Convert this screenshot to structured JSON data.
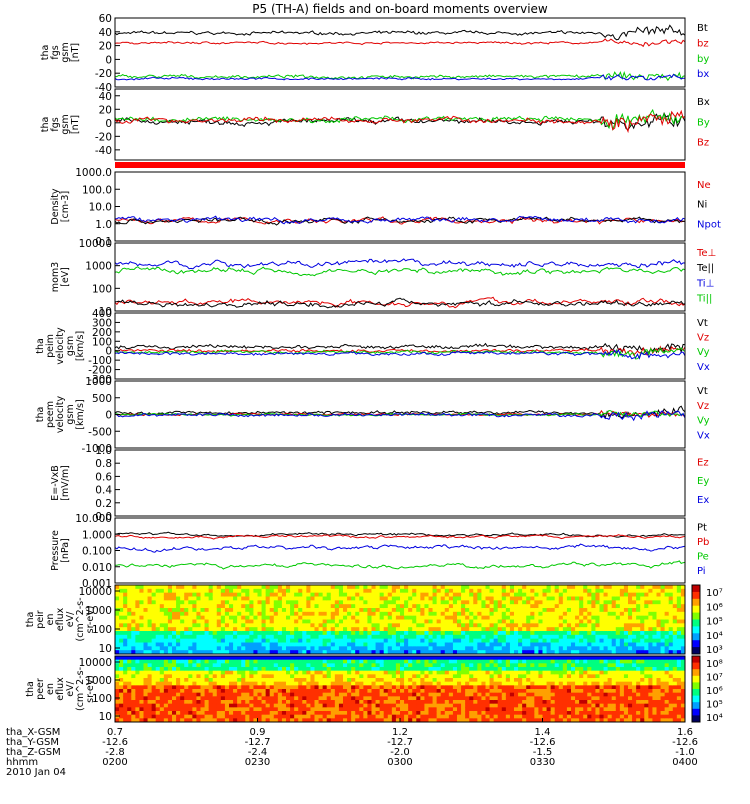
{
  "title": "P5 (TH-A) fields and on-board moments overview",
  "date": "2010 Jan 04",
  "xaxis_rows": [
    {
      "label": "tha_X-GSM",
      "values": [
        "0.7",
        "0.9",
        "1.2",
        "1.4",
        "1.6"
      ]
    },
    {
      "label": "tha_Y-GSM",
      "values": [
        "-12.6",
        "-12.7",
        "-12.7",
        "-12.6",
        "-12.6"
      ]
    },
    {
      "label": "tha_Z-GSM",
      "values": [
        "-2.8",
        "-2.4",
        "-2.0",
        "-1.5",
        "-1.0"
      ]
    },
    {
      "label": "hhmm",
      "values": [
        "0200",
        "0230",
        "0300",
        "0330",
        "0400"
      ]
    }
  ],
  "colors": {
    "black": "#000000",
    "red": "#e00000",
    "green": "#00c800",
    "blue": "#0000e0"
  },
  "chart_data": [
    {
      "type": "line",
      "ylabel": [
        "tha",
        "fgs",
        "gsm",
        "[nT]"
      ],
      "yticks": [
        "60",
        "40",
        "20",
        "0",
        "-20",
        "-40"
      ],
      "ylim": [
        -40,
        60
      ],
      "series": [
        {
          "name": "Bt",
          "color": "black",
          "base": 38,
          "noise": 3
        },
        {
          "name": "bz",
          "color": "red",
          "base": 24,
          "noise": 2
        },
        {
          "name": "by",
          "color": "green",
          "base": -25,
          "noise": 3
        },
        {
          "name": "bx",
          "color": "blue",
          "base": -28,
          "noise": 2
        }
      ]
    },
    {
      "type": "line",
      "ylabel": [
        "tha",
        "fgs",
        "gsm",
        "[nT]"
      ],
      "yticks": [
        "40",
        "20",
        "0",
        "-20",
        "-40"
      ],
      "ylim": [
        -55,
        50
      ],
      "series": [
        {
          "name": "Bx",
          "color": "black",
          "base": 2,
          "noise": 5
        },
        {
          "name": "By",
          "color": "green",
          "base": 5,
          "noise": 5
        },
        {
          "name": "Bz",
          "color": "red",
          "base": 4,
          "noise": 5
        }
      ]
    },
    {
      "type": "line",
      "scale": "log",
      "ylabel": [
        "Density",
        "[cm-3]"
      ],
      "yticks": [
        "1000.0",
        "100.0",
        "10.0",
        "1.0",
        "0.1"
      ],
      "ylim": [
        0.1,
        1000
      ],
      "series": [
        {
          "name": "Ne",
          "color": "red",
          "base": 1.5,
          "noise": 0.1
        },
        {
          "name": "Ni",
          "color": "black",
          "base": 1.5,
          "noise": 0.1
        },
        {
          "name": "Npot",
          "color": "blue",
          "base": 1.7,
          "noise": 0.1
        }
      ]
    },
    {
      "type": "line",
      "scale": "log",
      "ylabel": [
        "mom3",
        "[eV]"
      ],
      "yticks": [
        "10000",
        "1000",
        "100",
        "10"
      ],
      "ylim": [
        10,
        10000
      ],
      "series": [
        {
          "name": "Te⊥",
          "color": "red",
          "base": 25,
          "noise": 0.08
        },
        {
          "name": "Te||",
          "color": "black",
          "base": 22,
          "noise": 0.08
        },
        {
          "name": "Ti⊥",
          "color": "blue",
          "base": 1200,
          "noise": 0.08
        },
        {
          "name": "Ti||",
          "color": "green",
          "base": 600,
          "noise": 0.08
        }
      ]
    },
    {
      "type": "line",
      "ylabel": [
        "tha",
        "peim",
        "velocity",
        "gsm",
        "[km/s]"
      ],
      "yticks": [
        "400",
        "300",
        "200",
        "100",
        "0",
        "-100",
        "-200",
        "-300"
      ],
      "ylim": [
        -300,
        400
      ],
      "series": [
        {
          "name": "Vt",
          "color": "black",
          "base": 40,
          "noise": 25
        },
        {
          "name": "Vz",
          "color": "red",
          "base": 0,
          "noise": 20
        },
        {
          "name": "Vy",
          "color": "green",
          "base": -15,
          "noise": 20
        },
        {
          "name": "Vx",
          "color": "blue",
          "base": -30,
          "noise": 20
        }
      ]
    },
    {
      "type": "line",
      "ylabel": [
        "tha",
        "peem",
        "velocity",
        "gsm",
        "[km/s]"
      ],
      "yticks": [
        "1000",
        "500",
        "0",
        "-500",
        "-1000"
      ],
      "ylim": [
        -1000,
        1000
      ],
      "series": [
        {
          "name": "Vt",
          "color": "black",
          "base": 60,
          "noise": 60
        },
        {
          "name": "Vz",
          "color": "red",
          "base": 0,
          "noise": 40
        },
        {
          "name": "Vy",
          "color": "green",
          "base": 0,
          "noise": 40
        },
        {
          "name": "Vx",
          "color": "blue",
          "base": -20,
          "noise": 60
        }
      ]
    },
    {
      "type": "line",
      "ylabel": [
        "E=-VxB",
        "[mV/m]"
      ],
      "yticks": [
        "1.0",
        "0.8",
        "0.6",
        "0.4",
        "0.2",
        "0.0"
      ],
      "ylim": [
        0,
        1
      ],
      "series": [
        {
          "name": "Ez",
          "color": "red",
          "values": []
        },
        {
          "name": "Ey",
          "color": "green",
          "values": []
        },
        {
          "name": "Ex",
          "color": "blue",
          "values": []
        }
      ]
    },
    {
      "type": "line",
      "scale": "log",
      "ylabel": [
        "Pressure",
        "[nPa]"
      ],
      "yticks": [
        "10.000",
        "1.000",
        "0.100",
        "0.010",
        "0.001"
      ],
      "ylim": [
        0.001,
        10
      ],
      "series": [
        {
          "name": "Pt",
          "color": "black",
          "base": 0.95,
          "noise": 0.05
        },
        {
          "name": "Pb",
          "color": "red",
          "base": 0.7,
          "noise": 0.05
        },
        {
          "name": "Pe",
          "color": "green",
          "base": 0.012,
          "noise": 0.08
        },
        {
          "name": "Pi",
          "color": "blue",
          "base": 0.14,
          "noise": 0.08
        }
      ]
    },
    {
      "type": "heatmap",
      "ylabel": [
        "tha",
        "peir",
        "en",
        "eflux",
        "eV/",
        "(cm^2-s-",
        "sr-eV)"
      ],
      "yticks": [
        "10000",
        "1000",
        "100",
        "10"
      ],
      "colorbar_ticks": [
        "10⁷",
        "10⁶",
        "10⁵",
        "10⁴",
        "10³"
      ]
    },
    {
      "type": "heatmap",
      "ylabel": [
        "tha",
        "peer",
        "en",
        "eflux",
        "eV/",
        "(cm^2-s-",
        "sr-eV)"
      ],
      "yticks": [
        "10000",
        "1000",
        "100",
        "10"
      ],
      "colorbar_ticks": [
        "10⁸",
        "10⁷",
        "10⁶",
        "10⁵",
        "10⁴"
      ]
    }
  ]
}
